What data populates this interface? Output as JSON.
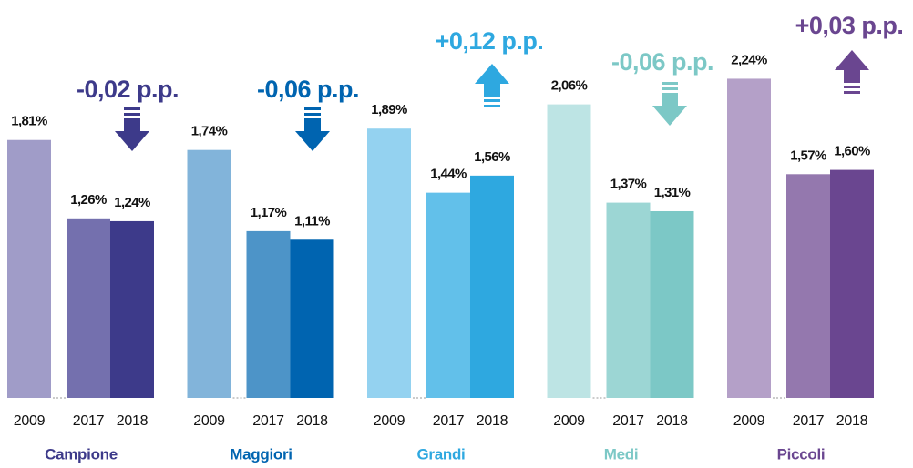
{
  "chart_data": {
    "type": "bar",
    "categories": [
      "Campione",
      "Maggiori",
      "Grandi",
      "Medi",
      "Piccoli"
    ],
    "series": [
      {
        "name": "2009",
        "values": [
          1.81,
          1.74,
          1.89,
          2.06,
          2.24
        ],
        "value_labels": [
          "1,81%",
          "1,74%",
          "1,89%",
          "2,06%",
          "2,24%"
        ]
      },
      {
        "name": "2017",
        "values": [
          1.26,
          1.17,
          1.44,
          1.37,
          1.57
        ],
        "value_labels": [
          "1,26%",
          "1,17%",
          "1,44%",
          "1,37%",
          "1,57%"
        ]
      },
      {
        "name": "2018",
        "values": [
          1.24,
          1.11,
          1.56,
          1.31,
          1.6
        ],
        "value_labels": [
          "1,24%",
          "1,11%",
          "1,56%",
          "1,31%",
          "1,60%"
        ]
      }
    ],
    "colors": [
      [
        "#a09cc8",
        "#7470ae",
        "#3d3a8a"
      ],
      [
        "#82b4da",
        "#4d94c8",
        "#0064b0"
      ],
      [
        "#94d2f0",
        "#62c0ea",
        "#2ea8e0"
      ],
      [
        "#bde4e4",
        "#9cd6d4",
        "#7cc8c6"
      ],
      [
        "#b4a0c8",
        "#9478ae",
        "#6a4690"
      ]
    ],
    "annotations": [
      "-0,02 p.p.",
      "-0,06 p.p.",
      "+0,12 p.p.",
      "-0,06 p.p.",
      "+0,03 p.p."
    ],
    "arrows": [
      "down",
      "down",
      "up",
      "down",
      "up"
    ]
  }
}
